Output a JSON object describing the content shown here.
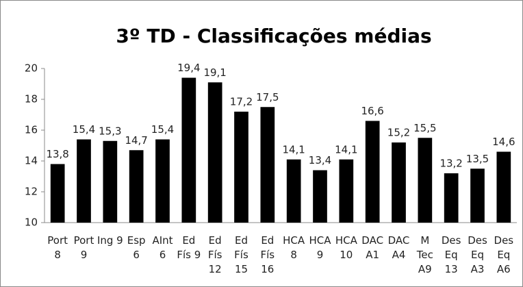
{
  "chart_data": {
    "type": "bar",
    "title": "3º TD - Classificações médias",
    "categories": [
      "Port 8",
      "Port 9",
      "Ing 9",
      "Esp 6",
      "AInt 6",
      "Ed Fís 9",
      "Ed Fís 12",
      "Ed Fís 15",
      "Ed Fís 16",
      "HCA 8",
      "HCA 9",
      "HCA 10",
      "DAC A1",
      "DAC A4",
      "M Tec A9",
      "Des Eq 13",
      "Des Eq A3",
      "Des Eq A6"
    ],
    "values": [
      13.8,
      15.4,
      15.3,
      14.7,
      15.4,
      19.4,
      19.1,
      17.2,
      17.5,
      14.1,
      13.4,
      14.1,
      16.6,
      15.2,
      15.5,
      13.2,
      13.5,
      14.6
    ],
    "value_labels": [
      "13,8",
      "15,4",
      "15,3",
      "14,7",
      "15,4",
      "19,4",
      "19,1",
      "17,2",
      "17,5",
      "14,1",
      "13,4",
      "14,1",
      "16,6",
      "15,2",
      "15,5",
      "13,2",
      "13,5",
      "14,6"
    ],
    "color": "#000000",
    "ylim": [
      10,
      20
    ],
    "yticks": [
      10,
      12,
      14,
      16,
      18,
      20
    ],
    "grid": false
  }
}
